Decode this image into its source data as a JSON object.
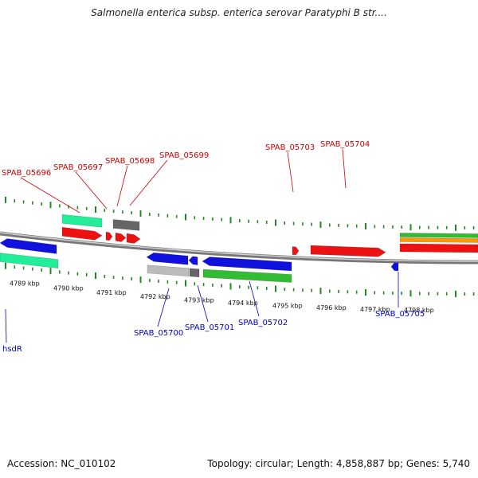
{
  "title": "Salmonella enterica subsp. enterica serovar Paratyphi B str....",
  "footer": {
    "accession": "Accession: NC_010102",
    "stats": "Topology: circular; Length: 4,858,887 bp; Genes: 5,740"
  },
  "colors": {
    "forward_label": "#cc0000",
    "reverse_label": "#0000cc",
    "red": "#ee1111",
    "blue": "#1111dd",
    "green": "#33bb33",
    "teal": "#22ee99",
    "orange": "#ff9900",
    "dark_gray": "#666666",
    "light_gray": "#bbbbbb",
    "backbone": "#888888"
  },
  "scale_labels": [
    "4789 kbp",
    "4790 kbp",
    "4791 kbp",
    "4792 kbp",
    "4793 kbp",
    "4794 kbp",
    "4795 kbp",
    "4796 kbp",
    "4797 kbp",
    "4798 kbp"
  ],
  "forward_gene_labels": [
    "SPAB_05696",
    "SPAB_05697",
    "SPAB_05698",
    "SPAB_05699",
    "SPAB_05703",
    "SPAB_05704"
  ],
  "reverse_gene_labels": [
    "hsdR",
    "SPAB_05700",
    "SPAB_05701",
    "SPAB_05702",
    "SPAB_05705"
  ]
}
